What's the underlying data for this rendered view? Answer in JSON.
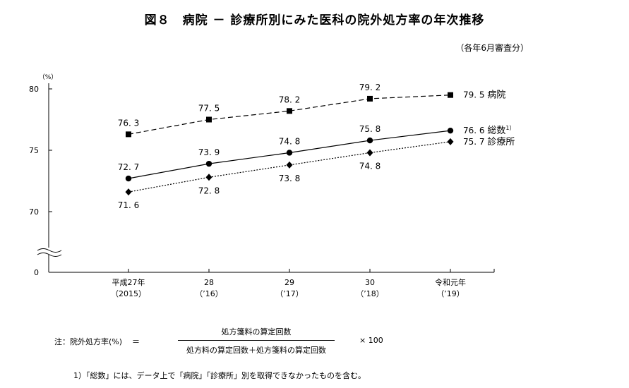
{
  "header": {
    "title": "図８　病院 － 診療所別にみた医科の院外処方率の年次推移",
    "subtitle": "（各年6月審査分）"
  },
  "chart_data": {
    "type": "line",
    "ylabel": "（%）",
    "yticks": [
      "80",
      "75",
      "70",
      "0"
    ],
    "ylim": [
      70,
      80
    ],
    "axis_break": true,
    "categories": [
      {
        "line1": "平成27年",
        "line2": "（2015）"
      },
      {
        "line1": "28",
        "line2": "（’16）"
      },
      {
        "line1": "29",
        "line2": "（’17）"
      },
      {
        "line1": "30",
        "line2": "（’18）"
      },
      {
        "line1": "令和元年",
        "line2": "（’19）"
      }
    ],
    "series": [
      {
        "name": "病院",
        "marker": "square",
        "style": "dashed",
        "values": [
          76.3,
          77.5,
          78.2,
          79.2,
          79.5
        ],
        "labels": [
          "76. 3",
          "77. 5",
          "78. 2",
          "79. 2",
          "79. 5"
        ],
        "label_pos": [
          "above",
          "above",
          "above",
          "above",
          "right"
        ]
      },
      {
        "name": "総数",
        "name_sup": "1）",
        "marker": "circle",
        "style": "solid",
        "values": [
          72.7,
          73.9,
          74.8,
          75.8,
          76.6
        ],
        "labels": [
          "72. 7",
          "73. 9",
          "74. 8",
          "75. 8",
          "76. 6"
        ],
        "label_pos": [
          "above",
          "above",
          "above",
          "above",
          "right"
        ]
      },
      {
        "name": "診療所",
        "marker": "diamond",
        "style": "dotted",
        "values": [
          71.6,
          72.8,
          73.8,
          74.8,
          75.7
        ],
        "labels": [
          "71. 6",
          "72. 8",
          "73. 8",
          "74. 8",
          "75. 7"
        ],
        "label_pos": [
          "below",
          "below",
          "below",
          "below",
          "right"
        ]
      }
    ]
  },
  "footnote": {
    "formula_label": "注：院外処方率(%)",
    "equals": "＝",
    "numerator": "処方箋料の算定回数",
    "denominator": "処方料の算定回数＋処方箋料の算定回数",
    "multiplier": "× 100",
    "note1": "1）「総数」には、データ上で「病院」「診療所」別を取得できなかったものを含む。"
  }
}
